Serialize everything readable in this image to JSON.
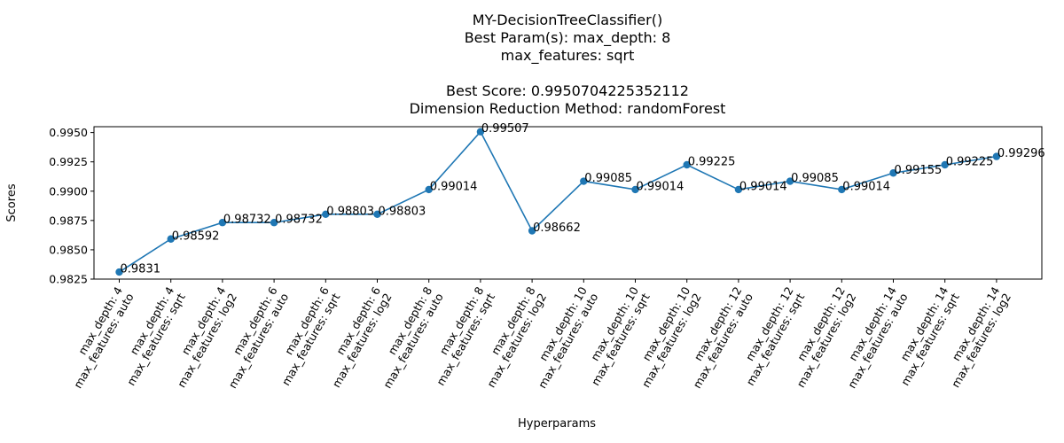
{
  "chart_data": {
    "type": "line",
    "title_lines": [
      "MY-DecisionTreeClassifier()",
      "Best Param(s): max_depth: 8",
      "max_features: sqrt",
      "",
      "Best Score: 0.9950704225352112",
      "Dimension Reduction Method: randomForest"
    ],
    "xlabel": "Hyperparams",
    "ylabel": "Scores",
    "ylim": [
      0.9825,
      0.9955
    ],
    "yticks": [
      "0.9825",
      "0.9850",
      "0.9875",
      "0.9900",
      "0.9925",
      "0.9950"
    ],
    "grid": false,
    "categories": [
      [
        "max_depth: 4",
        "max_features: auto"
      ],
      [
        "max_depth: 4",
        "max_features: sqrt"
      ],
      [
        "max_depth: 4",
        "max_features: log2"
      ],
      [
        "max_depth: 6",
        "max_features: auto"
      ],
      [
        "max_depth: 6",
        "max_features: sqrt"
      ],
      [
        "max_depth: 6",
        "max_features: log2"
      ],
      [
        "max_depth: 8",
        "max_features: auto"
      ],
      [
        "max_depth: 8",
        "max_features: sqrt"
      ],
      [
        "max_depth: 8",
        "max_features: log2"
      ],
      [
        "max_depth: 10",
        "max_features: auto"
      ],
      [
        "max_depth: 10",
        "max_features: sqrt"
      ],
      [
        "max_depth: 10",
        "max_features: log2"
      ],
      [
        "max_depth: 12",
        "max_features: auto"
      ],
      [
        "max_depth: 12",
        "max_features: sqrt"
      ],
      [
        "max_depth: 12",
        "max_features: log2"
      ],
      [
        "max_depth: 14",
        "max_features: auto"
      ],
      [
        "max_depth: 14",
        "max_features: sqrt"
      ],
      [
        "max_depth: 14",
        "max_features: log2"
      ]
    ],
    "values": [
      0.9831,
      0.98592,
      0.98732,
      0.98732,
      0.98803,
      0.98803,
      0.99014,
      0.99507,
      0.98662,
      0.99085,
      0.99014,
      0.99225,
      0.99014,
      0.99085,
      0.99014,
      0.99155,
      0.99225,
      0.99296
    ],
    "data_labels": [
      "0.9831",
      "0.98592",
      "0.98732",
      "0.98732",
      "0.98803",
      "0.98803",
      "0.99014",
      "0.99507",
      "0.98662",
      "0.99085",
      "0.99014",
      "0.99225",
      "0.99014",
      "0.99085",
      "0.99014",
      "0.99155",
      "0.99225",
      "0.99296"
    ],
    "line_color": "#1f77b4"
  }
}
